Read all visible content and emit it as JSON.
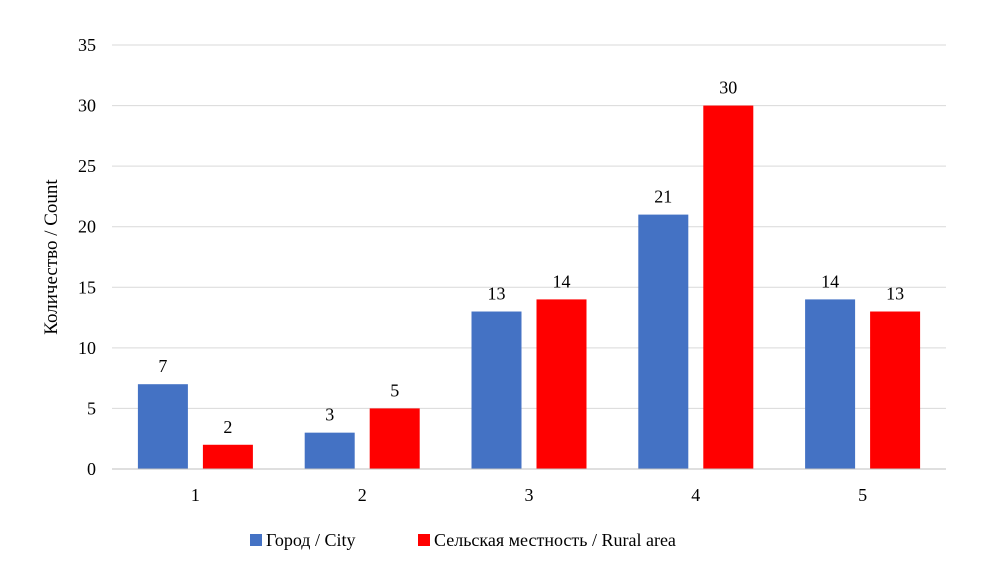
{
  "chart_data": {
    "type": "bar",
    "title": "",
    "xlabel": "",
    "ylabel": "Количество / Count",
    "categories": [
      "1",
      "2",
      "3",
      "4",
      "5"
    ],
    "ylim": [
      0,
      35
    ],
    "yticks": [
      0,
      5,
      10,
      15,
      20,
      25,
      30,
      35
    ],
    "grid": true,
    "legend_position": "bottom",
    "series": [
      {
        "name": "Город / City",
        "color": "#4472C4",
        "values": [
          7,
          3,
          13,
          21,
          14
        ]
      },
      {
        "name": "Сельская местность / Rural area",
        "color": "#FF0000",
        "values": [
          2,
          5,
          14,
          30,
          13
        ]
      }
    ]
  }
}
